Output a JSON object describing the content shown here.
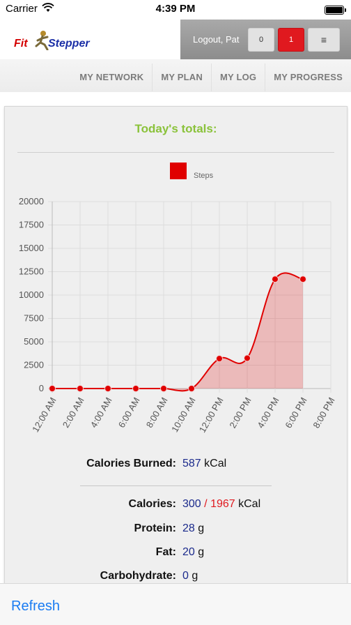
{
  "status": {
    "carrier": "Carrier",
    "time": "4:39 PM"
  },
  "brand": {
    "part1": "Fit",
    "part2": "Stepper"
  },
  "topbar": {
    "logout": "Logout, Pat",
    "btn1": "0",
    "btn2": "1",
    "menu_glyph": "≡"
  },
  "nav": [
    "MY NETWORK",
    "MY PLAN",
    "MY LOG",
    "MY PROGRESS"
  ],
  "card": {
    "title": "Today's totals:"
  },
  "chart_data": {
    "type": "area",
    "series": [
      {
        "name": "Steps",
        "color": "#e00000",
        "fill": "rgba(224,0,0,0.22)",
        "x": [
          "12:00 AM",
          "2:00 AM",
          "4:00 AM",
          "6:00 AM",
          "8:00 AM",
          "10:00 AM",
          "12:00 PM",
          "2:00 PM",
          "4:00 PM",
          "6:00 PM"
        ],
        "values": [
          0,
          0,
          0,
          0,
          0,
          0,
          3200,
          3250,
          11700,
          11700
        ]
      }
    ],
    "categories": [
      "12:00 AM",
      "2:00 AM",
      "4:00 AM",
      "6:00 AM",
      "8:00 AM",
      "10:00 AM",
      "12:00 PM",
      "2:00 PM",
      "4:00 PM",
      "6:00 PM",
      "8:00 PM"
    ],
    "yticks": [
      "0",
      "2500",
      "5000",
      "7500",
      "10000",
      "12500",
      "15000",
      "17500",
      "20000"
    ],
    "ylim": [
      0,
      20000
    ],
    "grid": true,
    "legend": "top-center"
  },
  "stats": {
    "burned": {
      "label": "Calories Burned:",
      "value": "587",
      "unit": "kCal"
    },
    "calories": {
      "label": "Calories:",
      "value": "300",
      "sep": "/",
      "target": "1967",
      "unit": "kCal"
    },
    "protein": {
      "label": "Protein:",
      "value": "28",
      "unit": "g"
    },
    "fat": {
      "label": "Fat:",
      "value": "20",
      "unit": "g"
    },
    "carbs": {
      "label": "Carbohydrate:",
      "value": "0",
      "unit": "g"
    }
  },
  "toolbar": {
    "refresh": "Refresh"
  }
}
